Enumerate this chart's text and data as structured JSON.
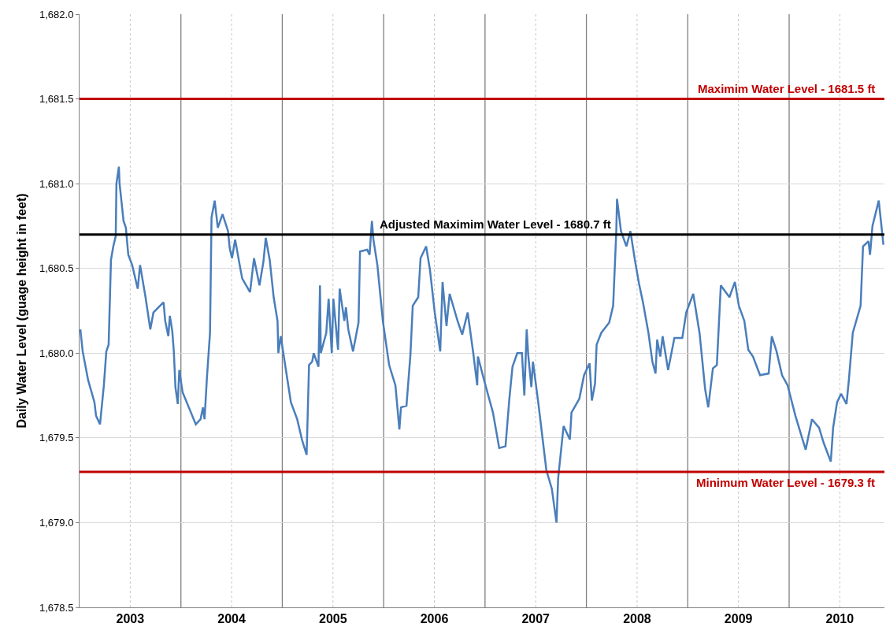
{
  "chart_data": {
    "type": "line",
    "ylabel": "Daily Water Level (guage height in feet)",
    "x": [
      2003.008,
      2003.031,
      2003.085,
      2003.147,
      2003.163,
      2003.202,
      2003.24,
      2003.264,
      2003.287,
      2003.31,
      2003.333,
      2003.357,
      2003.364,
      2003.388,
      2003.395,
      2003.434,
      2003.457,
      2003.481,
      2003.519,
      2003.574,
      2003.597,
      2003.651,
      2003.698,
      2003.729,
      2003.829,
      2003.845,
      2003.876,
      2003.891,
      2003.915,
      2003.93,
      2003.946,
      2003.969,
      2003.984,
      2004.016,
      2004.078,
      2004.147,
      2004.194,
      2004.217,
      2004.233,
      2004.256,
      2004.287,
      2004.302,
      2004.333,
      2004.364,
      2004.411,
      2004.465,
      2004.481,
      2004.504,
      2004.535,
      2004.589,
      2004.605,
      2004.682,
      2004.721,
      2004.775,
      2004.814,
      2004.837,
      2004.876,
      2004.915,
      2004.953,
      2004.961,
      2004.985,
      2005.023,
      2005.085,
      2005.147,
      2005.194,
      2005.24,
      2005.264,
      2005.295,
      2005.31,
      2005.357,
      2005.372,
      2005.38,
      2005.434,
      2005.457,
      2005.488,
      2005.504,
      2005.55,
      2005.566,
      2005.612,
      2005.628,
      2005.651,
      2005.698,
      2005.752,
      2005.767,
      2005.837,
      2005.861,
      2005.884,
      2005.899,
      2005.938,
      2005.992,
      2006.054,
      2006.116,
      2006.155,
      2006.171,
      2006.225,
      2006.264,
      2006.287,
      2006.341,
      2006.364,
      2006.419,
      2006.457,
      2006.504,
      2006.558,
      2006.581,
      2006.62,
      2006.651,
      2006.729,
      2006.775,
      2006.829,
      2006.884,
      2006.923,
      2006.93,
      2007.0,
      2007.078,
      2007.14,
      2007.202,
      2007.24,
      2007.271,
      2007.318,
      2007.364,
      2007.388,
      2007.411,
      2007.426,
      2007.457,
      2007.473,
      2007.527,
      2007.605,
      2007.659,
      2007.705,
      2007.721,
      2007.775,
      2007.837,
      2007.853,
      2007.93,
      2007.977,
      2008.031,
      2008.054,
      2008.085,
      2008.101,
      2008.147,
      2008.225,
      2008.264,
      2008.295,
      2008.302,
      2008.341,
      2008.395,
      2008.434,
      2008.481,
      2008.519,
      2008.558,
      2008.612,
      2008.651,
      2008.682,
      2008.698,
      2008.729,
      2008.752,
      2008.806,
      2008.868,
      2008.946,
      2008.985,
      2009.054,
      2009.116,
      2009.171,
      2009.202,
      2009.248,
      2009.287,
      2009.326,
      2009.411,
      2009.465,
      2009.504,
      2009.558,
      2009.597,
      2009.643,
      2009.713,
      2009.798,
      2009.829,
      2009.876,
      2009.93,
      2009.985,
      2010.062,
      2010.163,
      2010.225,
      2010.295,
      2010.341,
      2010.411,
      2010.434,
      2010.473,
      2010.512,
      2010.566,
      2010.589,
      2010.628,
      2010.705,
      2010.729,
      2010.783,
      2010.798,
      2010.822,
      2010.884,
      2010.93
    ],
    "series": [
      {
        "color": "#4a7ebb",
        "values": [
          1680.14,
          1680.01,
          1679.84,
          1679.71,
          1679.63,
          1679.58,
          1679.81,
          1680.01,
          1680.05,
          1680.55,
          1680.63,
          1680.69,
          1681.0,
          1681.1,
          1681.0,
          1680.78,
          1680.74,
          1680.58,
          1680.52,
          1680.38,
          1680.52,
          1680.33,
          1680.14,
          1680.24,
          1680.3,
          1680.19,
          1680.1,
          1680.22,
          1680.13,
          1680.01,
          1679.8,
          1679.7,
          1679.9,
          1679.77,
          1679.68,
          1679.58,
          1679.61,
          1679.68,
          1679.61,
          1679.85,
          1680.12,
          1680.8,
          1680.9,
          1680.74,
          1680.82,
          1680.72,
          1680.62,
          1680.56,
          1680.67,
          1680.49,
          1680.44,
          1680.36,
          1680.56,
          1680.4,
          1680.54,
          1680.68,
          1680.55,
          1680.33,
          1680.19,
          1680.0,
          1680.1,
          1679.95,
          1679.71,
          1679.61,
          1679.49,
          1679.4,
          1679.93,
          1679.95,
          1680.0,
          1679.92,
          1680.4,
          1680.0,
          1680.12,
          1680.32,
          1680.0,
          1680.32,
          1680.02,
          1680.38,
          1680.19,
          1680.27,
          1680.14,
          1680.01,
          1680.18,
          1680.6,
          1680.61,
          1680.58,
          1680.78,
          1680.67,
          1680.52,
          1680.19,
          1679.93,
          1679.81,
          1679.55,
          1679.68,
          1679.69,
          1679.99,
          1680.28,
          1680.33,
          1680.56,
          1680.63,
          1680.49,
          1680.24,
          1680.01,
          1680.42,
          1680.16,
          1680.35,
          1680.19,
          1680.11,
          1680.24,
          1680.0,
          1679.81,
          1679.98,
          1679.82,
          1679.65,
          1679.44,
          1679.45,
          1679.73,
          1679.92,
          1680.0,
          1680.0,
          1679.75,
          1680.14,
          1679.99,
          1679.8,
          1679.95,
          1679.7,
          1679.31,
          1679.2,
          1679.0,
          1679.26,
          1679.57,
          1679.49,
          1679.65,
          1679.73,
          1679.87,
          1679.94,
          1679.72,
          1679.82,
          1680.05,
          1680.12,
          1680.18,
          1680.28,
          1680.72,
          1680.91,
          1680.72,
          1680.63,
          1680.72,
          1680.54,
          1680.41,
          1680.3,
          1680.12,
          1679.95,
          1679.88,
          1680.08,
          1679.98,
          1680.1,
          1679.9,
          1680.09,
          1680.09,
          1680.24,
          1680.35,
          1680.12,
          1679.79,
          1679.68,
          1679.91,
          1679.93,
          1680.4,
          1680.33,
          1680.42,
          1680.28,
          1680.19,
          1680.02,
          1679.98,
          1679.87,
          1679.88,
          1680.1,
          1680.01,
          1679.87,
          1679.81,
          1679.63,
          1679.43,
          1679.61,
          1679.56,
          1679.47,
          1679.36,
          1679.56,
          1679.71,
          1679.76,
          1679.7,
          1679.84,
          1680.12,
          1680.28,
          1680.63,
          1680.66,
          1680.58,
          1680.75,
          1680.9,
          1680.64
        ]
      }
    ],
    "xlim": [
      2003.0,
      2010.94
    ],
    "xticks": [
      {
        "value": 2003.5,
        "label": "2003"
      },
      {
        "value": 2004,
        "label": null
      },
      {
        "value": 2004.5,
        "label": "2004"
      },
      {
        "value": 2005,
        "label": null
      },
      {
        "value": 2005.5,
        "label": "2005"
      },
      {
        "value": 2006,
        "label": null
      },
      {
        "value": 2006.5,
        "label": "2006"
      },
      {
        "value": 2007,
        "label": null
      },
      {
        "value": 2007.5,
        "label": "2007"
      },
      {
        "value": 2008,
        "label": null
      },
      {
        "value": 2008.5,
        "label": "2008"
      },
      {
        "value": 2009,
        "label": null
      },
      {
        "value": 2009.5,
        "label": "2009"
      },
      {
        "value": 2010,
        "label": null
      },
      {
        "value": 2010.5,
        "label": "2010"
      }
    ],
    "ylim": [
      1678.5,
      1682.0
    ],
    "yticks": [
      {
        "value": 1678.5,
        "label": "1,678.5"
      },
      {
        "value": 1679.0,
        "label": "1,679.0"
      },
      {
        "value": 1679.5,
        "label": "1,679.5"
      },
      {
        "value": 1680.0,
        "label": "1,680.0"
      },
      {
        "value": 1680.5,
        "label": "1,680.5"
      },
      {
        "value": 1681.0,
        "label": "1,681.0"
      },
      {
        "value": 1681.5,
        "label": "1,681.5"
      },
      {
        "value": 1682.0,
        "label": "1,682.0"
      }
    ],
    "ref_lines": [
      {
        "axis": "y",
        "value": 1681.5,
        "label": "Maximim Water Level - 1681.5 ft",
        "color": "#c00000"
      },
      {
        "axis": "y",
        "value": 1680.7,
        "label": "Adjusted Maximim Water Level - 1680.7 ft",
        "color": "#000000"
      },
      {
        "axis": "y",
        "value": 1679.3,
        "label": "Minimum Water Level - 1679.3 ft",
        "color": "#c00000"
      }
    ],
    "grid": true,
    "marker": "none",
    "line_style": "solid"
  }
}
